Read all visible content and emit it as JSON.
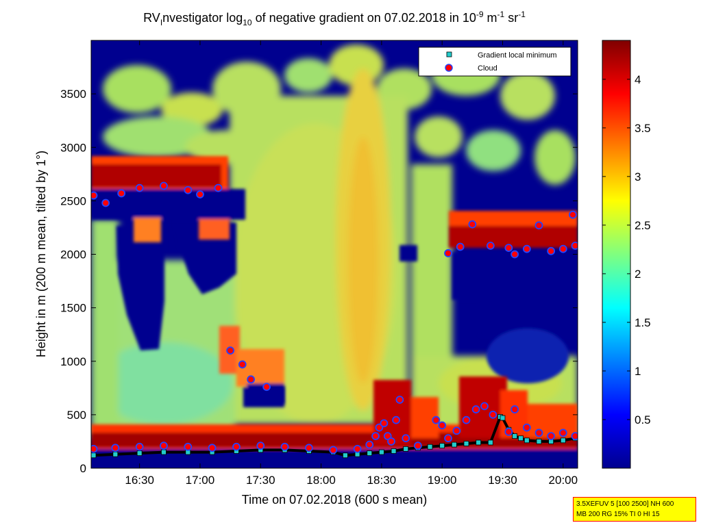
{
  "chart_data": {
    "type": "heatmap",
    "title": {
      "prefix": "RV",
      "prefix_sub": "I",
      "mid": "nvestigator log",
      "log_sub": "10",
      "mid2": " of negative gradient on 07.02.2018 in 10",
      "exp1": "-9",
      "unit1": " m",
      "exp2": "-1",
      "unit2": " sr",
      "exp3": "-1"
    },
    "xlabel": "Time on 07.02.2018 (600 s mean)",
    "ylabel": "Height in m (200 m mean, tilted by 1°)",
    "x_ticks": [
      {
        "t": 16.5,
        "label": "16:30"
      },
      {
        "t": 17.0,
        "label": "17:00"
      },
      {
        "t": 17.5,
        "label": "17:30"
      },
      {
        "t": 18.0,
        "label": "18:00"
      },
      {
        "t": 18.5,
        "label": "18:30"
      },
      {
        "t": 19.0,
        "label": "19:00"
      },
      {
        "t": 19.5,
        "label": "19:30"
      },
      {
        "t": 20.0,
        "label": "20:00"
      }
    ],
    "xlim": [
      16.1,
      20.12
    ],
    "ylim": [
      0,
      4000
    ],
    "y_ticks": [
      {
        "v": 0,
        "label": "0"
      },
      {
        "v": 500,
        "label": "500"
      },
      {
        "v": 1000,
        "label": "1000"
      },
      {
        "v": 1500,
        "label": "1500"
      },
      {
        "v": 2000,
        "label": "2000"
      },
      {
        "v": 2500,
        "label": "2500"
      },
      {
        "v": 3000,
        "label": "3000"
      },
      {
        "v": 3500,
        "label": "3500"
      }
    ],
    "colorbar": {
      "range": [
        0,
        4.4
      ],
      "ticks": [
        {
          "v": 0.5,
          "label": "0.5"
        },
        {
          "v": 1.0,
          "label": "1"
        },
        {
          "v": 1.5,
          "label": "1.5"
        },
        {
          "v": 2.0,
          "label": "2"
        },
        {
          "v": 2.5,
          "label": "2.5"
        },
        {
          "v": 3.0,
          "label": "3"
        },
        {
          "v": 3.5,
          "label": "3.5"
        },
        {
          "v": 4.0,
          "label": "4"
        }
      ]
    },
    "legend": {
      "position": "top-right",
      "entries": [
        {
          "label": "Gradient local minimum",
          "marker": "square",
          "color": "#22cccc"
        },
        {
          "label": "Cloud",
          "marker": "circle",
          "color": "#ff0000"
        }
      ]
    },
    "series": [
      {
        "name": "Gradient local minimum",
        "points": [
          [
            16.12,
            120
          ],
          [
            16.3,
            130
          ],
          [
            16.5,
            140
          ],
          [
            16.7,
            150
          ],
          [
            16.9,
            150
          ],
          [
            17.1,
            150
          ],
          [
            17.3,
            160
          ],
          [
            17.5,
            170
          ],
          [
            17.7,
            170
          ],
          [
            17.9,
            160
          ],
          [
            18.1,
            150
          ],
          [
            18.2,
            120
          ],
          [
            18.3,
            130
          ],
          [
            18.4,
            140
          ],
          [
            18.5,
            150
          ],
          [
            18.6,
            160
          ],
          [
            18.7,
            180
          ],
          [
            18.8,
            190
          ],
          [
            18.9,
            200
          ],
          [
            19.0,
            210
          ],
          [
            19.1,
            220
          ],
          [
            19.2,
            230
          ],
          [
            19.3,
            240
          ],
          [
            19.4,
            240
          ],
          [
            19.48,
            480
          ],
          [
            19.5,
            470
          ],
          [
            19.55,
            360
          ],
          [
            19.6,
            300
          ],
          [
            19.65,
            280
          ],
          [
            19.7,
            260
          ],
          [
            19.8,
            250
          ],
          [
            19.9,
            250
          ],
          [
            20.0,
            260
          ],
          [
            20.1,
            280
          ]
        ]
      },
      {
        "name": "Cloud",
        "points": [
          [
            16.12,
            180
          ],
          [
            16.3,
            190
          ],
          [
            16.5,
            200
          ],
          [
            16.7,
            210
          ],
          [
            16.9,
            200
          ],
          [
            17.1,
            190
          ],
          [
            17.3,
            200
          ],
          [
            17.5,
            210
          ],
          [
            17.7,
            200
          ],
          [
            17.9,
            190
          ],
          [
            18.1,
            170
          ],
          [
            18.3,
            180
          ],
          [
            18.4,
            220
          ],
          [
            18.45,
            300
          ],
          [
            18.48,
            380
          ],
          [
            18.52,
            420
          ],
          [
            18.55,
            300
          ],
          [
            18.58,
            250
          ],
          [
            18.62,
            450
          ],
          [
            18.65,
            640
          ],
          [
            18.7,
            280
          ],
          [
            18.8,
            210
          ],
          [
            18.95,
            450
          ],
          [
            19.0,
            400
          ],
          [
            19.05,
            280
          ],
          [
            19.12,
            350
          ],
          [
            19.2,
            450
          ],
          [
            19.28,
            550
          ],
          [
            19.35,
            580
          ],
          [
            19.42,
            500
          ],
          [
            19.55,
            340
          ],
          [
            19.6,
            550
          ],
          [
            19.7,
            380
          ],
          [
            19.8,
            330
          ],
          [
            19.9,
            300
          ],
          [
            20.0,
            330
          ],
          [
            20.1,
            300
          ],
          [
            16.12,
            2550
          ],
          [
            16.22,
            2480
          ],
          [
            16.35,
            2570
          ],
          [
            16.5,
            2620
          ],
          [
            16.7,
            2640
          ],
          [
            16.9,
            2600
          ],
          [
            17.0,
            2560
          ],
          [
            17.15,
            2620
          ],
          [
            17.25,
            1100
          ],
          [
            17.35,
            970
          ],
          [
            17.42,
            830
          ],
          [
            17.55,
            760
          ],
          [
            19.05,
            2010
          ],
          [
            19.15,
            2070
          ],
          [
            19.25,
            2280
          ],
          [
            19.4,
            2080
          ],
          [
            19.55,
            2060
          ],
          [
            19.6,
            2000
          ],
          [
            19.7,
            2050
          ],
          [
            19.8,
            2270
          ],
          [
            19.9,
            2030
          ],
          [
            20.0,
            2050
          ],
          [
            20.08,
            2370
          ],
          [
            20.1,
            2080
          ]
        ]
      }
    ]
  },
  "info_box": {
    "line1": "3.5XEFUV 5 [100 2500] NH 600",
    "line2": "MB 200 RG 15% TI 0 HI 15"
  },
  "colors": {
    "background_blue": "#00008f",
    "cloud_marker_fill": "#ff0000",
    "cloud_marker_edge": "#2244ff",
    "min_marker_fill": "#22cccc",
    "min_marker_edge": "#000000"
  }
}
